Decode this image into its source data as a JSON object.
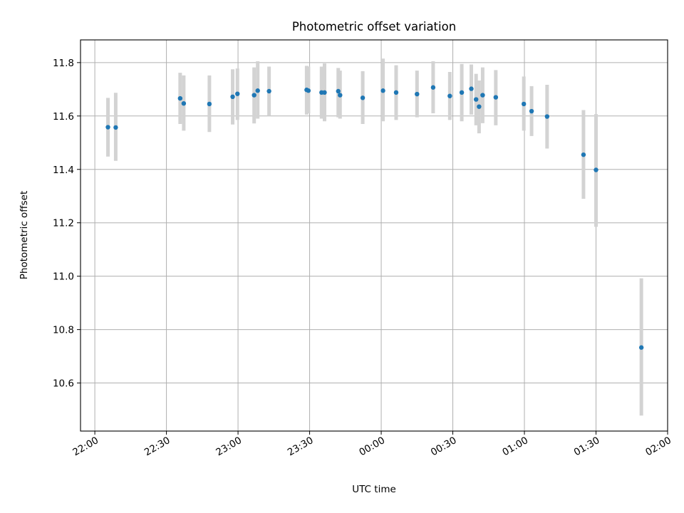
{
  "chart_data": {
    "type": "scatter",
    "title": "Photometric offset variation",
    "xlabel": "UTC time",
    "ylabel": "Photometric offset",
    "grid": true,
    "xlim": [
      "21:54",
      "02:00"
    ],
    "ylim": [
      10.42,
      11.885
    ],
    "x_ticks": [
      "22:00",
      "22:30",
      "23:00",
      "23:30",
      "00:00",
      "00:30",
      "01:00",
      "01:30",
      "02:00"
    ],
    "y_ticks": [
      "10.6",
      "10.8",
      "11.0",
      "11.2",
      "11.4",
      "11.6",
      "11.8"
    ],
    "colors": {
      "point": "#1f77b4",
      "errorbar": "#d3d3d3",
      "grid": "#b0b0b0"
    },
    "points": [
      {
        "x": "22:05:30",
        "y": 11.558,
        "lo": 11.448,
        "hi": 11.668
      },
      {
        "x": "22:08:45",
        "y": 11.557,
        "lo": 11.432,
        "hi": 11.687
      },
      {
        "x": "22:35:45",
        "y": 11.666,
        "lo": 11.57,
        "hi": 11.762
      },
      {
        "x": "22:37:15",
        "y": 11.647,
        "lo": 11.545,
        "hi": 11.752
      },
      {
        "x": "22:48:00",
        "y": 11.645,
        "lo": 11.54,
        "hi": 11.752
      },
      {
        "x": "22:57:45",
        "y": 11.672,
        "lo": 11.568,
        "hi": 11.775
      },
      {
        "x": "22:59:45",
        "y": 11.683,
        "lo": 11.585,
        "hi": 11.778
      },
      {
        "x": "23:06:45",
        "y": 11.678,
        "lo": 11.572,
        "hi": 11.782
      },
      {
        "x": "23:08:15",
        "y": 11.695,
        "lo": 11.59,
        "hi": 11.805
      },
      {
        "x": "23:13:00",
        "y": 11.693,
        "lo": 11.6,
        "hi": 11.785
      },
      {
        "x": "23:28:45",
        "y": 11.698,
        "lo": 11.605,
        "hi": 11.788
      },
      {
        "x": "23:29:30",
        "y": 11.695,
        "lo": 11.61,
        "hi": 11.785
      },
      {
        "x": "23:35:00",
        "y": 11.688,
        "lo": 11.59,
        "hi": 11.785
      },
      {
        "x": "23:36:15",
        "y": 11.688,
        "lo": 11.58,
        "hi": 11.797
      },
      {
        "x": "23:42:00",
        "y": 11.693,
        "lo": 11.595,
        "hi": 11.78
      },
      {
        "x": "23:42:45",
        "y": 11.678,
        "lo": 11.59,
        "hi": 11.77
      },
      {
        "x": "23:52:15",
        "y": 11.668,
        "lo": 11.57,
        "hi": 11.768
      },
      {
        "x": "00:00:45",
        "y": 11.695,
        "lo": 11.58,
        "hi": 11.815
      },
      {
        "x": "00:06:15",
        "y": 11.688,
        "lo": 11.585,
        "hi": 11.79
      },
      {
        "x": "00:15:00",
        "y": 11.682,
        "lo": 11.595,
        "hi": 11.77
      },
      {
        "x": "00:21:45",
        "y": 11.707,
        "lo": 11.61,
        "hi": 11.805
      },
      {
        "x": "00:28:45",
        "y": 11.675,
        "lo": 11.585,
        "hi": 11.765
      },
      {
        "x": "00:33:45",
        "y": 11.688,
        "lo": 11.58,
        "hi": 11.795
      },
      {
        "x": "00:37:45",
        "y": 11.702,
        "lo": 11.605,
        "hi": 11.793
      },
      {
        "x": "00:39:45",
        "y": 11.662,
        "lo": 11.565,
        "hi": 11.758
      },
      {
        "x": "00:41:00",
        "y": 11.635,
        "lo": 11.535,
        "hi": 11.733
      },
      {
        "x": "00:42:30",
        "y": 11.678,
        "lo": 11.573,
        "hi": 11.782
      },
      {
        "x": "00:48:00",
        "y": 11.67,
        "lo": 11.565,
        "hi": 11.772
      },
      {
        "x": "00:59:45",
        "y": 11.645,
        "lo": 11.545,
        "hi": 11.748
      },
      {
        "x": "01:03:00",
        "y": 11.618,
        "lo": 11.525,
        "hi": 11.712
      },
      {
        "x": "01:09:30",
        "y": 11.598,
        "lo": 11.478,
        "hi": 11.717
      },
      {
        "x": "01:24:45",
        "y": 11.455,
        "lo": 11.29,
        "hi": 11.622
      },
      {
        "x": "01:30:00",
        "y": 11.398,
        "lo": 11.185,
        "hi": 11.607
      },
      {
        "x": "01:49:00",
        "y": 10.733,
        "lo": 10.478,
        "hi": 10.992
      }
    ]
  }
}
